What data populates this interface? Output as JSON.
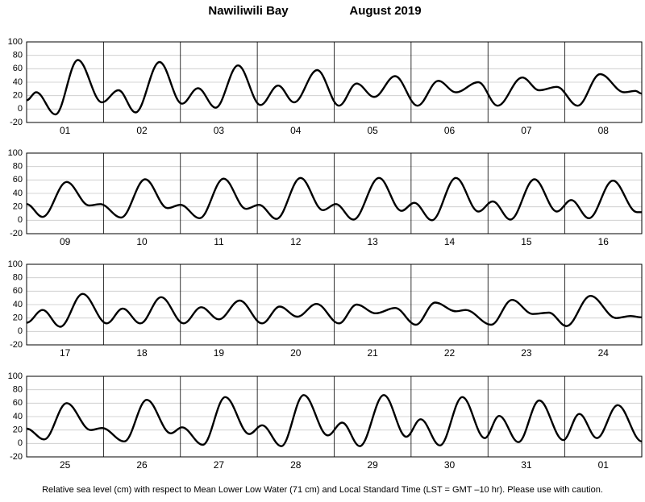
{
  "title": "Nawiliwili Bay",
  "date": "August   2019",
  "note": "Relative sea level (cm) with respect to Mean Lower Low Water (71 cm) and Local Standard Time (LST = GMT –10 hr). Please use with caution.",
  "chart_data": [
    {
      "type": "line",
      "color": "#000000",
      "xlim": [
        0,
        192
      ],
      "xticks": [
        24,
        48,
        72,
        96,
        120,
        144,
        168
      ],
      "ylim": [
        -20,
        100
      ],
      "yticks": [
        -20,
        0,
        20,
        40,
        60,
        80,
        100
      ],
      "grid": true,
      "categories": [
        "01",
        "02",
        "03",
        "04",
        "05",
        "06",
        "07",
        "08"
      ],
      "x": [
        0,
        3,
        9,
        16,
        23.5,
        28.7,
        34,
        41.5,
        48.5,
        53.5,
        59,
        66,
        73,
        78.5,
        83.5,
        90.7,
        97.5,
        103,
        108.5,
        115,
        122,
        128.5,
        134,
        141,
        147,
        154.7,
        160,
        165.5,
        172,
        179,
        186.5,
        190,
        192
      ],
      "values": [
        13,
        25,
        -8,
        73,
        10,
        28,
        -5,
        70,
        8,
        31,
        2,
        65,
        6,
        35,
        10,
        58,
        5,
        38,
        18,
        49,
        5,
        42,
        25,
        40,
        5,
        47,
        28,
        33,
        5,
        52,
        25,
        27,
        23
      ]
    },
    {
      "type": "line",
      "color": "#000000",
      "xlim": [
        0,
        192
      ],
      "xticks": [
        24,
        48,
        72,
        96,
        120,
        144,
        168
      ],
      "ylim": [
        -20,
        100
      ],
      "yticks": [
        -20,
        0,
        20,
        40,
        60,
        80,
        100
      ],
      "grid": true,
      "categories": [
        "09",
        "10",
        "11",
        "12",
        "13",
        "14",
        "15",
        "16"
      ],
      "x": [
        0,
        5,
        12.5,
        19.5,
        23,
        29.5,
        37,
        44,
        48,
        54,
        61.5,
        68.5,
        72.5,
        78,
        85.5,
        92.5,
        96.5,
        102,
        110,
        117,
        121,
        126.5,
        134,
        141,
        145.5,
        151,
        158.5,
        165.5,
        170,
        175.5,
        183,
        190.5,
        192
      ],
      "values": [
        24,
        5,
        57,
        22,
        24,
        4,
        61,
        18,
        23,
        3,
        62,
        17,
        23,
        2,
        63,
        15,
        24,
        1,
        63,
        14,
        26,
        0,
        63,
        13,
        28,
        1,
        61,
        13,
        30,
        3,
        59,
        12,
        12
      ]
    },
    {
      "type": "line",
      "color": "#000000",
      "xlim": [
        0,
        192
      ],
      "xticks": [
        24,
        48,
        72,
        96,
        120,
        144,
        168
      ],
      "ylim": [
        -20,
        100
      ],
      "yticks": [
        -20,
        0,
        20,
        40,
        60,
        80,
        100
      ],
      "grid": true,
      "categories": [
        "17",
        "18",
        "19",
        "20",
        "21",
        "22",
        "23",
        "24"
      ],
      "x": [
        0,
        5,
        10.5,
        17.5,
        25,
        30,
        35.5,
        42,
        49,
        54.5,
        60,
        66.5,
        73.5,
        79,
        84.5,
        90.5,
        97.5,
        103,
        109,
        115,
        121.5,
        127.5,
        134,
        137,
        145,
        151.5,
        158,
        163,
        168.5,
        176,
        184,
        188.5,
        192
      ],
      "values": [
        13,
        32,
        7,
        56,
        12,
        34,
        12,
        51,
        12,
        36,
        18,
        46,
        12,
        37,
        22,
        41,
        12,
        40,
        27,
        35,
        10,
        43,
        30,
        32,
        10,
        47,
        26,
        28,
        8,
        53,
        20,
        23,
        21
      ]
    },
    {
      "type": "line",
      "color": "#000000",
      "xlim": [
        0,
        192
      ],
      "xticks": [
        24,
        48,
        72,
        96,
        120,
        144,
        168
      ],
      "ylim": [
        -20,
        100
      ],
      "yticks": [
        -20,
        0,
        20,
        40,
        60,
        80,
        100
      ],
      "grid": true,
      "categories": [
        "25",
        "26",
        "27",
        "28",
        "29",
        "30",
        "31",
        "01"
      ],
      "x": [
        0,
        5.5,
        12.5,
        20,
        23.5,
        30.5,
        37.5,
        45,
        48.5,
        55,
        62,
        69.5,
        73.5,
        79.5,
        86.5,
        94,
        98.5,
        104,
        111.5,
        118.5,
        123,
        129,
        136,
        143,
        147.5,
        153.5,
        160,
        167.5,
        172.5,
        178,
        184.5,
        192
      ],
      "values": [
        22,
        6,
        60,
        20,
        23,
        3,
        65,
        15,
        24,
        -2,
        69,
        14,
        27,
        -4,
        72,
        12,
        31,
        -4,
        72,
        10,
        36,
        -3,
        69,
        8,
        41,
        2,
        64,
        5,
        44,
        8,
        57,
        3
      ]
    }
  ]
}
